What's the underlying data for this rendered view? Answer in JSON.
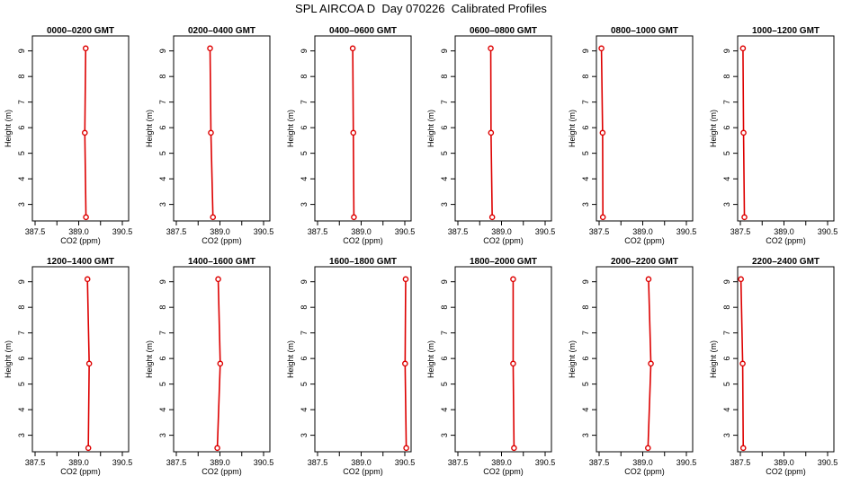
{
  "title": "SPL AIRCOA D  Day 070226  Calibrated Profiles",
  "colors": {
    "line": "#dd0000",
    "axis": "#000000"
  },
  "chart_data": {
    "type": "line",
    "xlabel": "CO2 (ppm)",
    "ylabel": "Height (m)",
    "xlim": [
      387.5,
      390.5
    ],
    "ylim": [
      2.6,
      9.2
    ],
    "xticks": [
      "387.5",
      "389.0",
      "390.5"
    ],
    "yticks": [
      "3",
      "4",
      "5",
      "6",
      "7",
      "8",
      "9"
    ],
    "heights": [
      2.5,
      5.8,
      9.1
    ],
    "panels": [
      {
        "title": "0000–0200 GMT",
        "co2": [
          389.25,
          389.21,
          389.24
        ]
      },
      {
        "title": "0200–0400 GMT",
        "co2": [
          388.76,
          388.69,
          388.66
        ]
      },
      {
        "title": "0400–0600 GMT",
        "co2": [
          388.75,
          388.73,
          388.71
        ]
      },
      {
        "title": "0600–0800 GMT",
        "co2": [
          388.68,
          388.64,
          388.63
        ]
      },
      {
        "title": "0800–1000 GMT",
        "co2": [
          387.63,
          387.62,
          387.58
        ]
      },
      {
        "title": "1000–1200 GMT",
        "co2": [
          387.64,
          387.61,
          387.59
        ]
      },
      {
        "title": "1200–1400 GMT",
        "co2": [
          389.33,
          389.36,
          389.3
        ]
      },
      {
        "title": "1400–1600 GMT",
        "co2": [
          388.91,
          389.01,
          388.94
        ]
      },
      {
        "title": "1600–1800 GMT",
        "co2": [
          390.55,
          390.51,
          390.53
        ]
      },
      {
        "title": "1800–2000 GMT",
        "co2": [
          389.43,
          389.4,
          389.4
        ]
      },
      {
        "title": "2000–2200 GMT",
        "co2": [
          389.18,
          389.28,
          389.2
        ]
      },
      {
        "title": "2200–2400 GMT",
        "co2": [
          387.6,
          387.58,
          387.52
        ]
      }
    ]
  }
}
